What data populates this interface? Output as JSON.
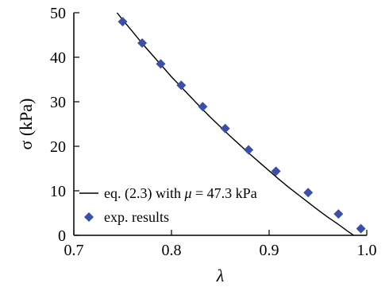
{
  "chart_data": {
    "type": "scatter",
    "xlabel": "λ",
    "ylabel": "σ (kPa)",
    "xlim": [
      0.7,
      1.0
    ],
    "ylim": [
      0,
      50
    ],
    "xticks": [
      "0.7",
      "0.8",
      "0.9",
      "1.0"
    ],
    "yticks": [
      "0",
      "10",
      "20",
      "30",
      "40",
      "50"
    ],
    "grid": false,
    "legend": {
      "placement": "bottom-left",
      "entries": [
        {
          "label_prefix": "eq. (2.3) with ",
          "label_symbol": "μ",
          "label_suffix": " = 47.3 kPa",
          "kind": "line"
        },
        {
          "label": "exp. results",
          "kind": "marker"
        }
      ]
    },
    "series": [
      {
        "kind": "line",
        "mu": 47.3,
        "x": [
          0.74,
          0.75,
          0.76,
          0.77,
          0.78,
          0.79,
          0.8,
          0.81,
          0.82,
          0.83,
          0.84,
          0.85,
          0.86,
          0.87,
          0.88,
          0.89,
          0.9,
          0.91,
          0.92,
          0.93,
          0.94,
          0.95,
          0.96,
          0.97,
          0.98,
          0.99,
          1.0
        ],
        "y": [
          51.2,
          48.4,
          45.8,
          43.1,
          40.6,
          38.1,
          35.6,
          33.3,
          31.0,
          28.7,
          26.5,
          24.4,
          22.3,
          20.3,
          18.3,
          16.4,
          14.5,
          12.6,
          10.8,
          9.1,
          7.4,
          5.7,
          4.1,
          2.6,
          1.0,
          -0.5,
          -2.0
        ],
        "color": "#000000"
      },
      {
        "kind": "marker",
        "x": [
          0.75,
          0.77,
          0.789,
          0.81,
          0.832,
          0.855,
          0.879,
          0.907,
          0.94,
          0.971,
          0.994
        ],
        "y": [
          48.0,
          43.2,
          38.5,
          33.7,
          28.9,
          24.0,
          19.2,
          14.4,
          9.6,
          4.8,
          1.5
        ],
        "color": "#3a4fa8"
      }
    ]
  }
}
